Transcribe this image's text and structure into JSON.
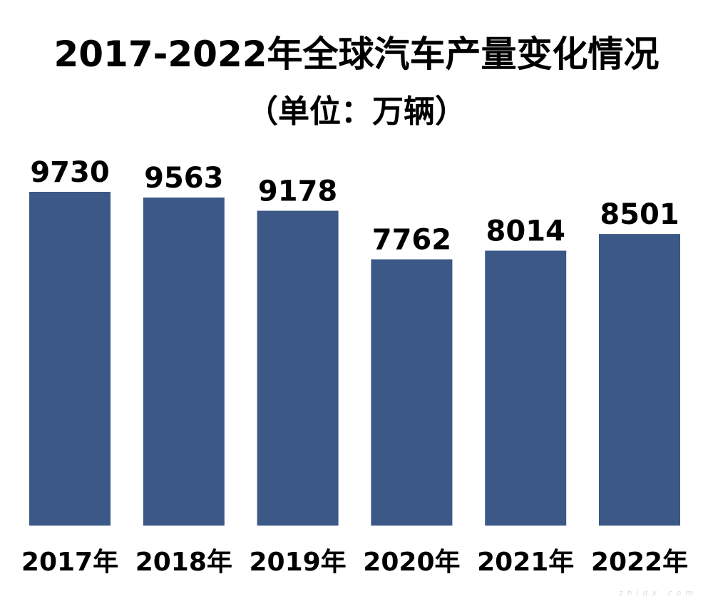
{
  "chart_data": {
    "type": "bar",
    "title": "2017-2022年全球汽车产量变化情况",
    "subtitle": "（单位：万辆）",
    "categories": [
      "2017年",
      "2018年",
      "2019年",
      "2020年",
      "2021年",
      "2022年"
    ],
    "values": [
      9730,
      9563,
      9178,
      7762,
      8014,
      8501
    ],
    "ylim": [
      0,
      9730
    ],
    "grid": false,
    "bar_color": "#3b5887",
    "data_labels": true
  },
  "watermark": "zhidx.com"
}
